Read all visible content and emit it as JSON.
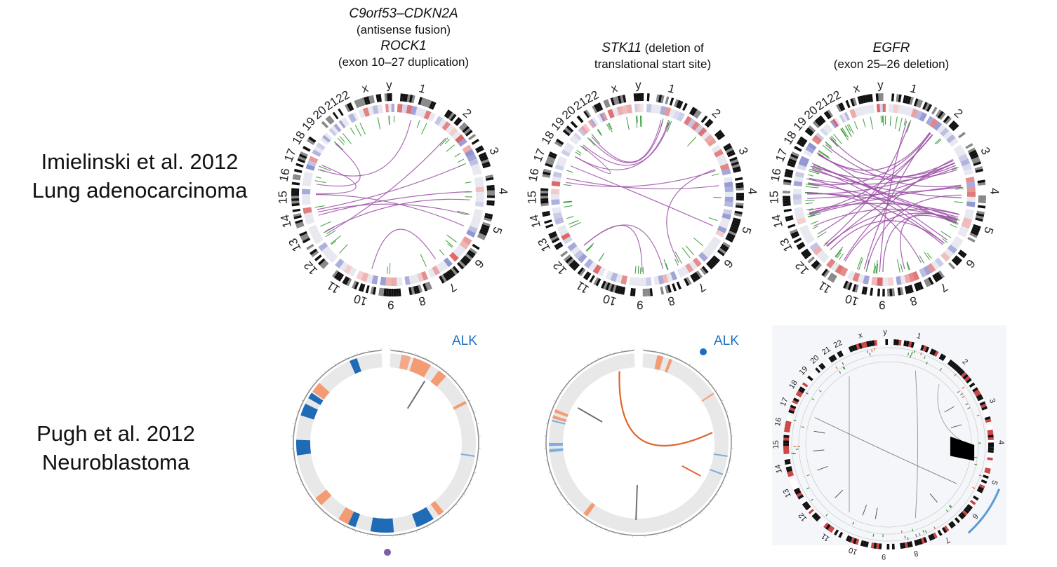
{
  "rows": [
    {
      "lines": [
        "Imielinski et al. 2012",
        "Lung adenocarcinoma"
      ]
    },
    {
      "lines": [
        "Pugh et al. 2012",
        "Neuroblastoma"
      ]
    }
  ],
  "columns": [
    {
      "lines": [
        {
          "text": "C9orf53–CDKN2A",
          "italic": true
        },
        {
          "text": "(antisense fusion)",
          "italic": false
        },
        {
          "text": "ROCK1",
          "italic": true
        },
        {
          "text": "(exon 10–27 duplication)",
          "italic": false
        }
      ]
    },
    {
      "gene": "STK11",
      "rest": " (deletion of",
      "line2": "translational start site)"
    },
    {
      "gene": "EGFR",
      "line2": "(exon 25–26 deletion)"
    }
  ],
  "chromosome_labels": [
    "1",
    "2",
    "3",
    "4",
    "5",
    "6",
    "7",
    "8",
    "9",
    "10",
    "11",
    "12",
    "13",
    "14",
    "15",
    "16",
    "17",
    "18",
    "19",
    "20",
    "21",
    "22",
    "x",
    "y"
  ],
  "neuroblastoma_gene_label": "ALK",
  "colors": {
    "fusion_link": "#9b4fa6",
    "snv_tick": "#3a9e3a",
    "cn_gain": "#d23c3c",
    "cn_loss": "#6a6fc0",
    "nb_loss": "#1f6bb5",
    "nb_gain": "#f39c74",
    "nb_link_orange": "#e0662e",
    "nb_link_gray": "#707070",
    "alk_blue": "#1e6fc0",
    "dot_purple": "#7b5fa8"
  },
  "circos_links_top": {
    "top1": [
      [
        5,
        15
      ],
      [
        4,
        14
      ],
      [
        5,
        14
      ],
      [
        3,
        14
      ],
      [
        1,
        17
      ],
      [
        2,
        13
      ],
      [
        7,
        10
      ],
      [
        16,
        19
      ],
      [
        17,
        15
      ],
      [
        4,
        13
      ]
    ],
    "top2": [
      [
        1,
        19
      ],
      [
        1,
        18
      ],
      [
        1,
        20
      ],
      [
        1,
        20
      ],
      [
        3,
        16
      ],
      [
        4,
        16
      ],
      [
        5,
        17
      ],
      [
        7,
        3
      ],
      [
        9,
        12
      ],
      [
        8,
        12
      ],
      [
        19,
        18
      ]
    ],
    "top3": [
      [
        3,
        16
      ],
      [
        3,
        15
      ],
      [
        3,
        17
      ],
      [
        4,
        15
      ],
      [
        5,
        16
      ],
      [
        5,
        15
      ],
      [
        5,
        14
      ],
      [
        3,
        14
      ],
      [
        2,
        14
      ],
      [
        6,
        15
      ],
      [
        4,
        17
      ],
      [
        5,
        17
      ],
      [
        2,
        13
      ],
      [
        3,
        12
      ],
      [
        5,
        12
      ],
      [
        2,
        16
      ],
      [
        1,
        12
      ],
      [
        5,
        9
      ],
      [
        4,
        10
      ],
      [
        3,
        11
      ],
      [
        5,
        11
      ],
      [
        6,
        18
      ],
      [
        4,
        19
      ],
      [
        3,
        20
      ],
      [
        2,
        18
      ],
      [
        5,
        17
      ],
      [
        4,
        14
      ],
      [
        5,
        13
      ],
      [
        3,
        18
      ],
      [
        6,
        17
      ],
      [
        2,
        10
      ],
      [
        1,
        9
      ],
      [
        5,
        8
      ],
      [
        7,
        16
      ],
      [
        6,
        12
      ]
    ]
  }
}
